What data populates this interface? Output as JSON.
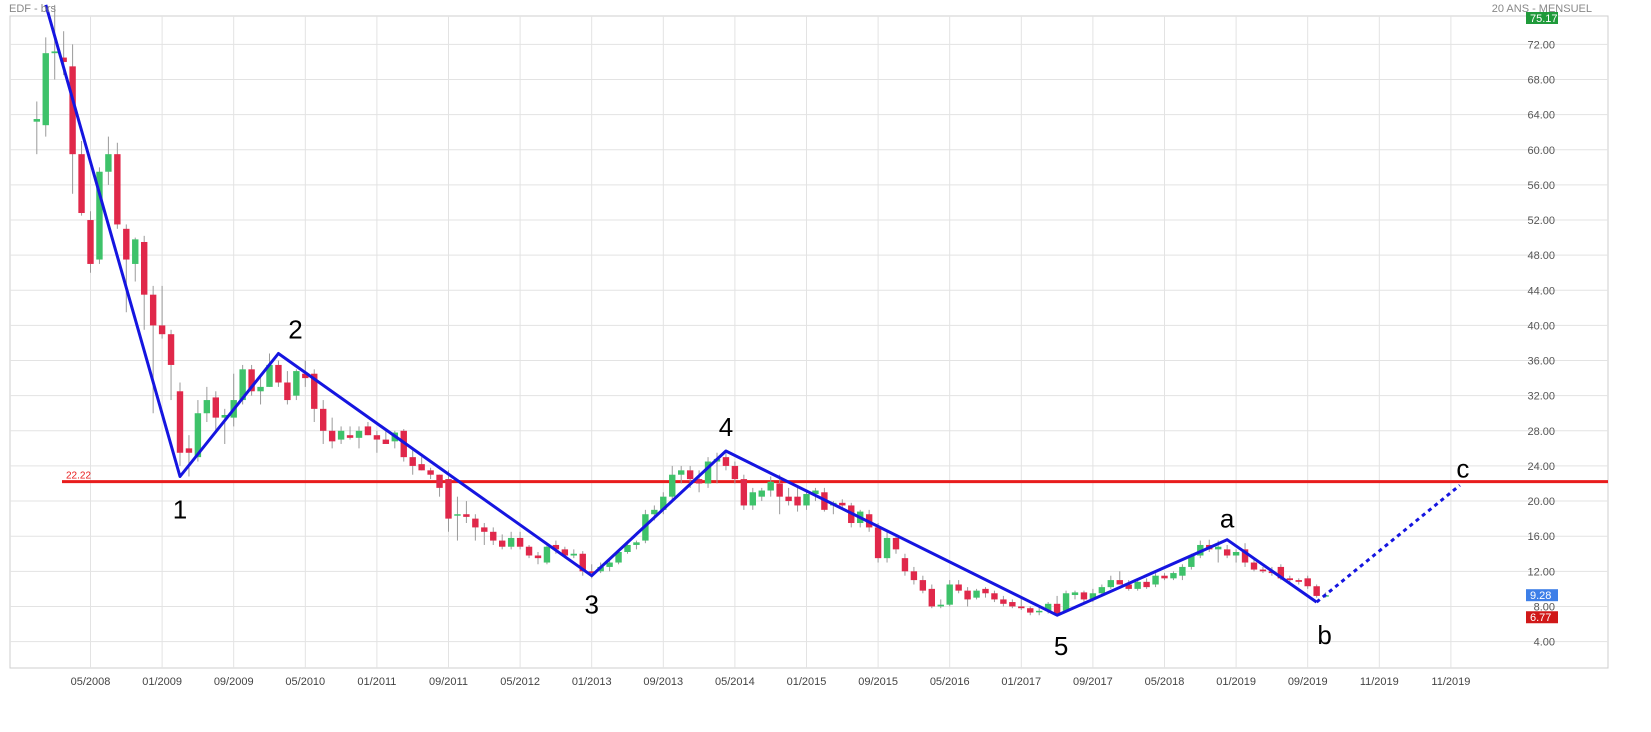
{
  "header": {
    "instrument": "EDF - brs",
    "period": "20 ANS - MENSUEL"
  },
  "chart_data": {
    "type": "candlestick",
    "title": "EDF - brs",
    "subtitle": "20 ANS - MENSUEL",
    "ylim": [
      0,
      76
    ],
    "y_ticks": [
      "4.00",
      "8.00",
      "12.00",
      "16.00",
      "20.00",
      "24.00",
      "28.00",
      "32.00",
      "36.00",
      "40.00",
      "44.00",
      "48.00",
      "52.00",
      "56.00",
      "60.00",
      "64.00",
      "68.00",
      "72.00"
    ],
    "x_ticks": [
      "05/2008",
      "01/2009",
      "09/2009",
      "05/2010",
      "01/2011",
      "09/2011",
      "05/2012",
      "01/2013",
      "09/2013",
      "05/2014",
      "01/2015",
      "09/2015",
      "05/2016",
      "01/2017",
      "09/2017",
      "05/2018",
      "01/2019",
      "09/2019",
      "11/2019",
      "11/2019"
    ],
    "grid": true,
    "colors": {
      "up": "#3ec26a",
      "down": "#e0284a",
      "wave": "#1515e0",
      "level": "#e81c1c"
    },
    "price_badges": [
      {
        "text": "75.17",
        "value": 75.17,
        "color": "#1f9a3a"
      },
      {
        "text": "9.28",
        "value": 9.28,
        "color": "#3d7fe8"
      },
      {
        "text": "6.77",
        "value": 6.77,
        "color": "#d01818"
      }
    ],
    "horizontal_level": {
      "value": 22.22,
      "label": "22.22"
    },
    "wave_labels": [
      "1",
      "2",
      "3",
      "4",
      "5",
      "a",
      "b",
      "c"
    ],
    "wave_points": [
      {
        "date": "2007-12",
        "price": 76.5
      },
      {
        "date": "2009-03",
        "price": 22.8
      },
      {
        "date": "2010-02",
        "price": 36.8
      },
      {
        "date": "2013-01",
        "price": 11.5
      },
      {
        "date": "2014-04",
        "price": 25.7
      },
      {
        "date": "2017-05",
        "price": 7.0
      },
      {
        "date": "2018-12",
        "price": 15.6
      },
      {
        "date": "2019-10",
        "price": 8.5
      }
    ],
    "wave_projection": [
      {
        "date": "2019-10",
        "price": 8.5
      },
      {
        "date": "2021-02",
        "price": 21.8
      }
    ],
    "candles": [
      {
        "date": "2007-11",
        "o": 63.2,
        "h": 65.5,
        "l": 59.5,
        "c": 63.5
      },
      {
        "date": "2007-12",
        "o": 62.8,
        "h": 72.8,
        "l": 61.5,
        "c": 71.0
      },
      {
        "date": "2008-01",
        "o": 71.0,
        "h": 76.5,
        "l": 68.0,
        "c": 71.2
      },
      {
        "date": "2008-02",
        "o": 70.5,
        "h": 73.5,
        "l": 68.5,
        "c": 70.0
      },
      {
        "date": "2008-03",
        "o": 69.5,
        "h": 72.0,
        "l": 55.0,
        "c": 59.5
      },
      {
        "date": "2008-04",
        "o": 59.5,
        "h": 61.0,
        "l": 52.5,
        "c": 52.8
      },
      {
        "date": "2008-05",
        "o": 52.0,
        "h": 53.0,
        "l": 46.0,
        "c": 47.0
      },
      {
        "date": "2008-06",
        "o": 47.5,
        "h": 58.0,
        "l": 47.0,
        "c": 57.5
      },
      {
        "date": "2008-07",
        "o": 57.5,
        "h": 61.5,
        "l": 56.0,
        "c": 59.5
      },
      {
        "date": "2008-08",
        "o": 59.5,
        "h": 60.8,
        "l": 51.0,
        "c": 51.5
      },
      {
        "date": "2008-09",
        "o": 51.0,
        "h": 51.5,
        "l": 41.5,
        "c": 47.5
      },
      {
        "date": "2008-10",
        "o": 47.0,
        "h": 50.0,
        "l": 45.0,
        "c": 49.8
      },
      {
        "date": "2008-11",
        "o": 49.5,
        "h": 50.2,
        "l": 39.5,
        "c": 43.5
      },
      {
        "date": "2008-12",
        "o": 43.5,
        "h": 44.5,
        "l": 30.0,
        "c": 40.0
      },
      {
        "date": "2009-01",
        "o": 40.0,
        "h": 44.5,
        "l": 38.5,
        "c": 39.0
      },
      {
        "date": "2009-02",
        "o": 39.0,
        "h": 39.5,
        "l": 31.5,
        "c": 35.5
      },
      {
        "date": "2009-03",
        "o": 32.5,
        "h": 33.5,
        "l": 24.0,
        "c": 25.5
      },
      {
        "date": "2009-04",
        "o": 26.0,
        "h": 27.5,
        "l": 22.8,
        "c": 25.5
      },
      {
        "date": "2009-05",
        "o": 25.0,
        "h": 31.5,
        "l": 24.5,
        "c": 30.0
      },
      {
        "date": "2009-06",
        "o": 30.0,
        "h": 33.0,
        "l": 29.0,
        "c": 31.5
      },
      {
        "date": "2009-07",
        "o": 31.8,
        "h": 32.5,
        "l": 28.0,
        "c": 29.5
      },
      {
        "date": "2009-08",
        "o": 29.5,
        "h": 30.5,
        "l": 26.5,
        "c": 29.8
      },
      {
        "date": "2009-09",
        "o": 29.5,
        "h": 34.5,
        "l": 28.5,
        "c": 31.5
      },
      {
        "date": "2009-10",
        "o": 31.5,
        "h": 35.5,
        "l": 31.0,
        "c": 35.0
      },
      {
        "date": "2009-11",
        "o": 35.0,
        "h": 35.5,
        "l": 32.0,
        "c": 32.5
      },
      {
        "date": "2009-12",
        "o": 32.5,
        "h": 34.5,
        "l": 31.0,
        "c": 33.0
      },
      {
        "date": "2010-01",
        "o": 33.0,
        "h": 36.8,
        "l": 33.0,
        "c": 35.5
      },
      {
        "date": "2010-02",
        "o": 35.5,
        "h": 36.0,
        "l": 33.0,
        "c": 33.5
      },
      {
        "date": "2010-03",
        "o": 33.5,
        "h": 34.8,
        "l": 31.0,
        "c": 31.5
      },
      {
        "date": "2010-04",
        "o": 32.0,
        "h": 35.0,
        "l": 31.5,
        "c": 34.8
      },
      {
        "date": "2010-05",
        "o": 34.5,
        "h": 36.0,
        "l": 33.0,
        "c": 34.0
      },
      {
        "date": "2010-06",
        "o": 34.5,
        "h": 35.0,
        "l": 29.0,
        "c": 30.5
      },
      {
        "date": "2010-07",
        "o": 30.5,
        "h": 31.5,
        "l": 26.5,
        "c": 28.0
      },
      {
        "date": "2010-08",
        "o": 28.0,
        "h": 29.5,
        "l": 26.0,
        "c": 26.8
      },
      {
        "date": "2010-09",
        "o": 27.0,
        "h": 28.5,
        "l": 26.5,
        "c": 28.0
      },
      {
        "date": "2010-10",
        "o": 27.5,
        "h": 28.5,
        "l": 27.0,
        "c": 27.2
      },
      {
        "date": "2010-11",
        "o": 27.2,
        "h": 28.5,
        "l": 26.0,
        "c": 28.0
      },
      {
        "date": "2010-12",
        "o": 28.5,
        "h": 29.0,
        "l": 27.5,
        "c": 27.5
      },
      {
        "date": "2011-01",
        "o": 27.5,
        "h": 28.0,
        "l": 25.5,
        "c": 27.0
      },
      {
        "date": "2011-02",
        "o": 27.0,
        "h": 28.0,
        "l": 26.5,
        "c": 26.5
      },
      {
        "date": "2011-03",
        "o": 26.8,
        "h": 28.0,
        "l": 26.0,
        "c": 27.8
      },
      {
        "date": "2011-04",
        "o": 28.0,
        "h": 28.2,
        "l": 24.5,
        "c": 25.0
      },
      {
        "date": "2011-05",
        "o": 25.0,
        "h": 26.0,
        "l": 23.0,
        "c": 24.0
      },
      {
        "date": "2011-06",
        "o": 24.2,
        "h": 25.0,
        "l": 23.5,
        "c": 23.5
      },
      {
        "date": "2011-07",
        "o": 23.5,
        "h": 23.8,
        "l": 22.5,
        "c": 23.0
      },
      {
        "date": "2011-08",
        "o": 23.0,
        "h": 23.0,
        "l": 20.5,
        "c": 21.5
      },
      {
        "date": "2011-09",
        "o": 22.5,
        "h": 23.5,
        "l": 16.5,
        "c": 18.0
      },
      {
        "date": "2011-10",
        "o": 18.5,
        "h": 20.5,
        "l": 15.5,
        "c": 18.5
      },
      {
        "date": "2011-11",
        "o": 18.5,
        "h": 20.0,
        "l": 17.5,
        "c": 18.2
      },
      {
        "date": "2011-12",
        "o": 18.0,
        "h": 18.5,
        "l": 15.5,
        "c": 17.0
      },
      {
        "date": "2012-01",
        "o": 17.0,
        "h": 17.5,
        "l": 15.0,
        "c": 16.5
      },
      {
        "date": "2012-02",
        "o": 16.5,
        "h": 17.0,
        "l": 15.0,
        "c": 15.5
      },
      {
        "date": "2012-03",
        "o": 15.5,
        "h": 16.2,
        "l": 14.5,
        "c": 14.8
      },
      {
        "date": "2012-04",
        "o": 14.8,
        "h": 16.5,
        "l": 14.5,
        "c": 15.8
      },
      {
        "date": "2012-05",
        "o": 15.8,
        "h": 16.5,
        "l": 14.5,
        "c": 14.8
      },
      {
        "date": "2012-06",
        "o": 14.8,
        "h": 15.0,
        "l": 13.5,
        "c": 13.8
      },
      {
        "date": "2012-07",
        "o": 13.8,
        "h": 14.2,
        "l": 12.8,
        "c": 13.5
      },
      {
        "date": "2012-08",
        "o": 13.0,
        "h": 15.2,
        "l": 12.8,
        "c": 14.8
      },
      {
        "date": "2012-09",
        "o": 15.0,
        "h": 15.5,
        "l": 14.0,
        "c": 14.5
      },
      {
        "date": "2012-10",
        "o": 14.5,
        "h": 14.8,
        "l": 13.5,
        "c": 13.8
      },
      {
        "date": "2012-11",
        "o": 13.8,
        "h": 14.5,
        "l": 13.5,
        "c": 14.0
      },
      {
        "date": "2012-12",
        "o": 14.0,
        "h": 14.3,
        "l": 11.5,
        "c": 12.0
      },
      {
        "date": "2013-01",
        "o": 12.0,
        "h": 12.8,
        "l": 11.2,
        "c": 11.8
      },
      {
        "date": "2013-02",
        "o": 12.0,
        "h": 13.0,
        "l": 11.8,
        "c": 12.5
      },
      {
        "date": "2013-03",
        "o": 12.5,
        "h": 13.5,
        "l": 12.0,
        "c": 13.0
      },
      {
        "date": "2013-04",
        "o": 13.0,
        "h": 14.5,
        "l": 12.8,
        "c": 14.2
      },
      {
        "date": "2013-05",
        "o": 14.2,
        "h": 15.5,
        "l": 14.0,
        "c": 15.0
      },
      {
        "date": "2013-06",
        "o": 15.0,
        "h": 15.5,
        "l": 14.5,
        "c": 15.3
      },
      {
        "date": "2013-07",
        "o": 15.5,
        "h": 19.0,
        "l": 15.2,
        "c": 18.5
      },
      {
        "date": "2013-08",
        "o": 18.5,
        "h": 19.5,
        "l": 17.8,
        "c": 19.0
      },
      {
        "date": "2013-09",
        "o": 19.0,
        "h": 21.0,
        "l": 18.5,
        "c": 20.5
      },
      {
        "date": "2013-10",
        "o": 20.5,
        "h": 24.0,
        "l": 20.0,
        "c": 23.0
      },
      {
        "date": "2013-11",
        "o": 23.0,
        "h": 24.0,
        "l": 22.0,
        "c": 23.5
      },
      {
        "date": "2013-12",
        "o": 23.5,
        "h": 24.0,
        "l": 21.5,
        "c": 22.5
      },
      {
        "date": "2014-01",
        "o": 22.5,
        "h": 23.5,
        "l": 21.0,
        "c": 22.0
      },
      {
        "date": "2014-02",
        "o": 22.0,
        "h": 25.0,
        "l": 21.5,
        "c": 24.5
      },
      {
        "date": "2014-03",
        "o": 24.5,
        "h": 25.5,
        "l": 22.0,
        "c": 24.8
      },
      {
        "date": "2014-04",
        "o": 25.0,
        "h": 25.7,
        "l": 23.5,
        "c": 24.0
      },
      {
        "date": "2014-05",
        "o": 24.0,
        "h": 24.5,
        "l": 22.0,
        "c": 22.5
      },
      {
        "date": "2014-06",
        "o": 22.5,
        "h": 23.0,
        "l": 19.0,
        "c": 19.5
      },
      {
        "date": "2014-07",
        "o": 19.5,
        "h": 21.5,
        "l": 19.0,
        "c": 21.0
      },
      {
        "date": "2014-08",
        "o": 20.5,
        "h": 21.5,
        "l": 20.0,
        "c": 21.2
      },
      {
        "date": "2014-09",
        "o": 21.2,
        "h": 22.8,
        "l": 20.5,
        "c": 22.2
      },
      {
        "date": "2014-10",
        "o": 22.0,
        "h": 23.0,
        "l": 18.5,
        "c": 20.5
      },
      {
        "date": "2014-11",
        "o": 20.5,
        "h": 21.5,
        "l": 19.5,
        "c": 20.0
      },
      {
        "date": "2014-12",
        "o": 20.5,
        "h": 21.5,
        "l": 18.8,
        "c": 19.5
      },
      {
        "date": "2015-01",
        "o": 19.5,
        "h": 21.0,
        "l": 19.0,
        "c": 20.8
      },
      {
        "date": "2015-02",
        "o": 20.8,
        "h": 21.5,
        "l": 20.0,
        "c": 21.2
      },
      {
        "date": "2015-03",
        "o": 21.0,
        "h": 21.5,
        "l": 18.8,
        "c": 19.0
      },
      {
        "date": "2015-04",
        "o": 19.5,
        "h": 20.0,
        "l": 18.5,
        "c": 19.8
      },
      {
        "date": "2015-05",
        "o": 19.8,
        "h": 20.2,
        "l": 19.0,
        "c": 19.5
      },
      {
        "date": "2015-06",
        "o": 19.5,
        "h": 19.8,
        "l": 17.0,
        "c": 17.5
      },
      {
        "date": "2015-07",
        "o": 17.5,
        "h": 19.0,
        "l": 17.0,
        "c": 18.8
      },
      {
        "date": "2015-08",
        "o": 18.5,
        "h": 19.0,
        "l": 16.5,
        "c": 17.0
      },
      {
        "date": "2015-09",
        "o": 17.0,
        "h": 17.5,
        "l": 13.0,
        "c": 13.5
      },
      {
        "date": "2015-10",
        "o": 13.5,
        "h": 16.5,
        "l": 13.0,
        "c": 15.8
      },
      {
        "date": "2015-11",
        "o": 15.8,
        "h": 16.0,
        "l": 14.0,
        "c": 14.5
      },
      {
        "date": "2015-12",
        "o": 13.5,
        "h": 14.0,
        "l": 11.5,
        "c": 12.0
      },
      {
        "date": "2016-01",
        "o": 12.0,
        "h": 12.5,
        "l": 10.5,
        "c": 11.0
      },
      {
        "date": "2016-02",
        "o": 11.0,
        "h": 11.5,
        "l": 9.5,
        "c": 9.8
      },
      {
        "date": "2016-03",
        "o": 10.0,
        "h": 10.5,
        "l": 7.8,
        "c": 8.0
      },
      {
        "date": "2016-04",
        "o": 8.0,
        "h": 8.8,
        "l": 7.8,
        "c": 8.2
      },
      {
        "date": "2016-05",
        "o": 8.2,
        "h": 11.0,
        "l": 8.0,
        "c": 10.5
      },
      {
        "date": "2016-06",
        "o": 10.5,
        "h": 11.0,
        "l": 9.5,
        "c": 9.8
      },
      {
        "date": "2016-07",
        "o": 9.8,
        "h": 10.2,
        "l": 8.0,
        "c": 8.8
      },
      {
        "date": "2016-08",
        "o": 9.0,
        "h": 10.0,
        "l": 8.8,
        "c": 9.8
      },
      {
        "date": "2016-09",
        "o": 10.0,
        "h": 10.2,
        "l": 9.0,
        "c": 9.5
      },
      {
        "date": "2016-10",
        "o": 9.5,
        "h": 9.8,
        "l": 8.5,
        "c": 8.8
      },
      {
        "date": "2016-11",
        "o": 8.8,
        "h": 9.2,
        "l": 8.0,
        "c": 8.3
      },
      {
        "date": "2016-12",
        "o": 8.5,
        "h": 8.8,
        "l": 7.8,
        "c": 8.0
      },
      {
        "date": "2017-01",
        "o": 8.0,
        "h": 9.0,
        "l": 7.6,
        "c": 7.8
      },
      {
        "date": "2017-02",
        "o": 7.8,
        "h": 8.0,
        "l": 7.0,
        "c": 7.3
      },
      {
        "date": "2017-03",
        "o": 7.4,
        "h": 8.0,
        "l": 7.0,
        "c": 7.5
      },
      {
        "date": "2017-04",
        "o": 7.5,
        "h": 8.5,
        "l": 7.2,
        "c": 8.3
      },
      {
        "date": "2017-05",
        "o": 8.3,
        "h": 9.2,
        "l": 6.9,
        "c": 7.2
      },
      {
        "date": "2017-06",
        "o": 7.5,
        "h": 9.8,
        "l": 7.3,
        "c": 9.5
      },
      {
        "date": "2017-07",
        "o": 9.3,
        "h": 9.8,
        "l": 8.8,
        "c": 9.6
      },
      {
        "date": "2017-08",
        "o": 9.6,
        "h": 9.8,
        "l": 8.5,
        "c": 8.8
      },
      {
        "date": "2017-09",
        "o": 8.8,
        "h": 10.0,
        "l": 8.5,
        "c": 9.5
      },
      {
        "date": "2017-10",
        "o": 9.5,
        "h": 10.5,
        "l": 9.2,
        "c": 10.2
      },
      {
        "date": "2017-11",
        "o": 10.2,
        "h": 11.5,
        "l": 10.0,
        "c": 11.0
      },
      {
        "date": "2017-12",
        "o": 11.0,
        "h": 12.0,
        "l": 10.5,
        "c": 10.5
      },
      {
        "date": "2018-01",
        "o": 10.5,
        "h": 11.0,
        "l": 9.8,
        "c": 10.0
      },
      {
        "date": "2018-02",
        "o": 10.0,
        "h": 11.0,
        "l": 9.8,
        "c": 10.8
      },
      {
        "date": "2018-03",
        "o": 10.8,
        "h": 11.2,
        "l": 10.0,
        "c": 10.2
      },
      {
        "date": "2018-04",
        "o": 10.5,
        "h": 11.8,
        "l": 10.2,
        "c": 11.5
      },
      {
        "date": "2018-05",
        "o": 11.5,
        "h": 11.8,
        "l": 11.0,
        "c": 11.2
      },
      {
        "date": "2018-06",
        "o": 11.2,
        "h": 12.0,
        "l": 11.0,
        "c": 11.8
      },
      {
        "date": "2018-07",
        "o": 11.5,
        "h": 12.8,
        "l": 11.0,
        "c": 12.5
      },
      {
        "date": "2018-08",
        "o": 12.5,
        "h": 14.0,
        "l": 12.2,
        "c": 13.8
      },
      {
        "date": "2018-09",
        "o": 13.8,
        "h": 15.5,
        "l": 13.5,
        "c": 15.0
      },
      {
        "date": "2018-10",
        "o": 15.0,
        "h": 15.6,
        "l": 14.2,
        "c": 14.5
      },
      {
        "date": "2018-11",
        "o": 14.5,
        "h": 15.5,
        "l": 13.0,
        "c": 14.8
      },
      {
        "date": "2018-12",
        "o": 14.5,
        "h": 15.0,
        "l": 13.5,
        "c": 13.8
      },
      {
        "date": "2019-01",
        "o": 13.8,
        "h": 14.5,
        "l": 13.0,
        "c": 14.2
      },
      {
        "date": "2019-02",
        "o": 14.5,
        "h": 15.2,
        "l": 12.5,
        "c": 13.0
      },
      {
        "date": "2019-03",
        "o": 13.0,
        "h": 13.5,
        "l": 12.0,
        "c": 12.2
      },
      {
        "date": "2019-04",
        "o": 12.2,
        "h": 12.5,
        "l": 11.8,
        "c": 12.0
      },
      {
        "date": "2019-05",
        "o": 12.0,
        "h": 12.5,
        "l": 11.5,
        "c": 11.8
      },
      {
        "date": "2019-06",
        "o": 12.5,
        "h": 12.8,
        "l": 11.0,
        "c": 11.2
      },
      {
        "date": "2019-07",
        "o": 11.2,
        "h": 11.5,
        "l": 10.8,
        "c": 11.0
      },
      {
        "date": "2019-08",
        "o": 11.0,
        "h": 11.2,
        "l": 10.5,
        "c": 10.8
      },
      {
        "date": "2019-09",
        "o": 11.2,
        "h": 11.5,
        "l": 10.0,
        "c": 10.3
      },
      {
        "date": "2019-10",
        "o": 10.3,
        "h": 10.5,
        "l": 9.0,
        "c": 9.2
      },
      {
        "date": "2019-11",
        "o": 9.2,
        "h": 9.6,
        "l": 9.0,
        "c": 9.28
      }
    ]
  }
}
